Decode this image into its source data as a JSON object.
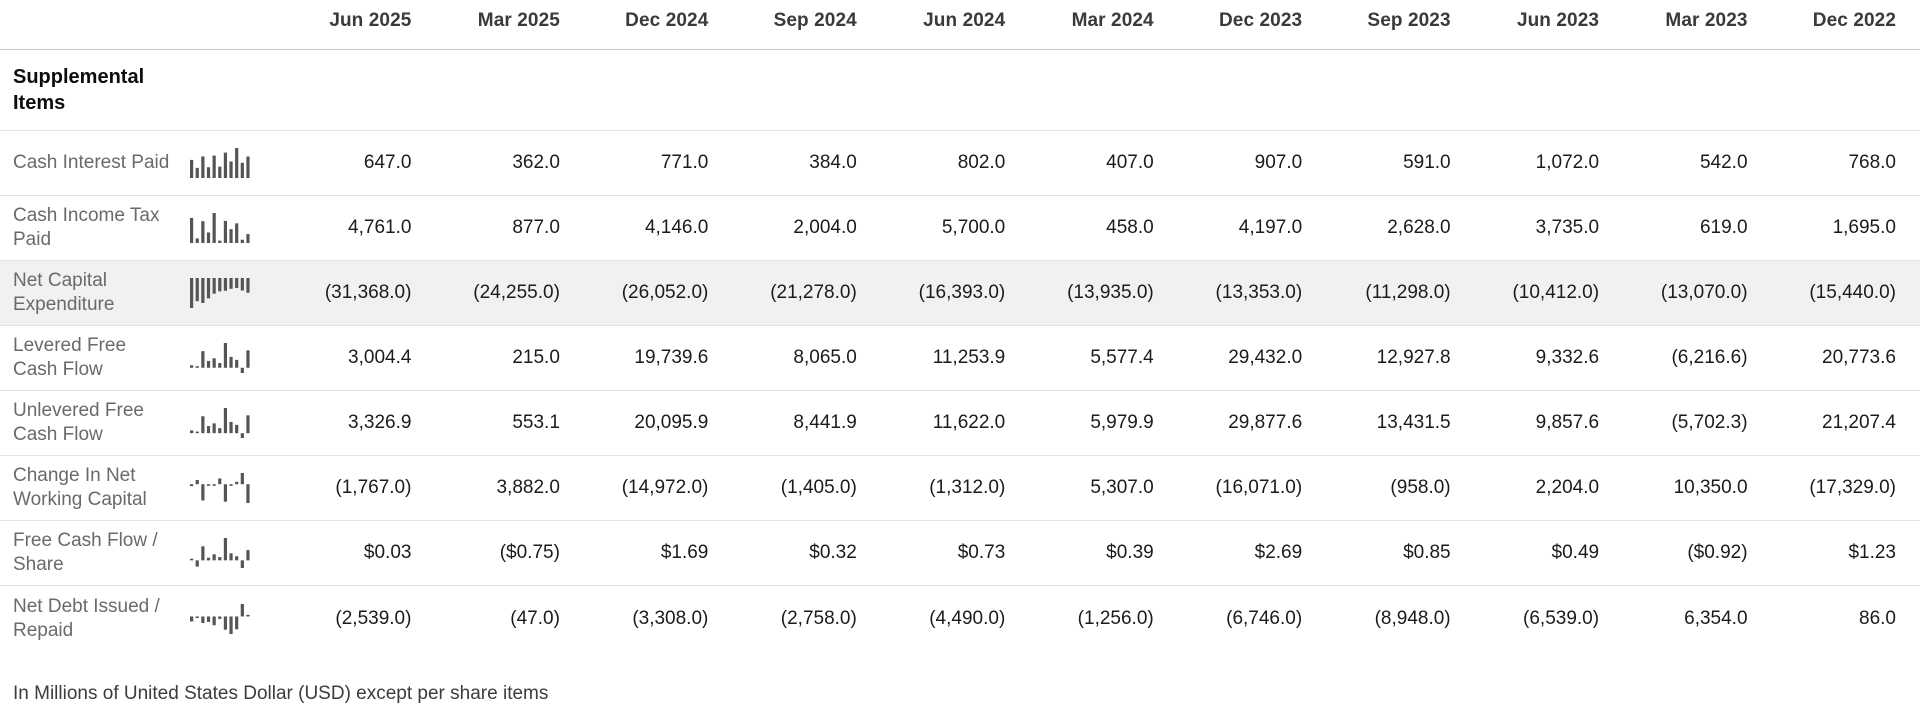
{
  "table": {
    "section_title": "Supplemental Items",
    "columns": [
      "Jun 2025",
      "Mar 2025",
      "Dec 2024",
      "Sep 2024",
      "Jun 2024",
      "Mar 2024",
      "Dec 2023",
      "Sep 2023",
      "Jun 2023",
      "Mar 2023",
      "Dec 2022"
    ],
    "rows": [
      {
        "label": "Cash Interest Paid",
        "highlighted": false,
        "values": [
          "647.0",
          "362.0",
          "771.0",
          "384.0",
          "802.0",
          "407.0",
          "907.0",
          "591.0",
          "1,072.0",
          "542.0",
          "768.0"
        ]
      },
      {
        "label": "Cash Income Tax Paid",
        "highlighted": false,
        "values": [
          "4,761.0",
          "877.0",
          "4,146.0",
          "2,004.0",
          "5,700.0",
          "458.0",
          "4,197.0",
          "2,628.0",
          "3,735.0",
          "619.0",
          "1,695.0"
        ]
      },
      {
        "label": "Net Capital Expenditure",
        "highlighted": true,
        "values": [
          "(31,368.0)",
          "(24,255.0)",
          "(26,052.0)",
          "(21,278.0)",
          "(16,393.0)",
          "(13,935.0)",
          "(13,353.0)",
          "(11,298.0)",
          "(10,412.0)",
          "(13,070.0)",
          "(15,440.0)"
        ]
      },
      {
        "label": "Levered Free Cash Flow",
        "highlighted": false,
        "values": [
          "3,004.4",
          "215.0",
          "19,739.6",
          "8,065.0",
          "11,253.9",
          "5,577.4",
          "29,432.0",
          "12,927.8",
          "9,332.6",
          "(6,216.6)",
          "20,773.6"
        ]
      },
      {
        "label": "Unlevered Free Cash Flow",
        "highlighted": false,
        "values": [
          "3,326.9",
          "553.1",
          "20,095.9",
          "8,441.9",
          "11,622.0",
          "5,979.9",
          "29,877.6",
          "13,431.5",
          "9,857.6",
          "(5,702.3)",
          "21,207.4"
        ]
      },
      {
        "label": "Change In Net Working Capital",
        "highlighted": false,
        "values": [
          "(1,767.0)",
          "3,882.0",
          "(14,972.0)",
          "(1,405.0)",
          "(1,312.0)",
          "5,307.0",
          "(16,071.0)",
          "(958.0)",
          "2,204.0",
          "10,350.0",
          "(17,329.0)"
        ]
      },
      {
        "label": "Free Cash Flow / Share",
        "highlighted": false,
        "values": [
          "$0.03",
          "($0.75)",
          "$1.69",
          "$0.32",
          "$0.73",
          "$0.39",
          "$2.69",
          "$0.85",
          "$0.49",
          "($0.92)",
          "$1.23"
        ]
      },
      {
        "label": "Net Debt Issued / Repaid",
        "highlighted": false,
        "values": [
          "(2,539.0)",
          "(47.0)",
          "(3,308.0)",
          "(2,758.0)",
          "(4,490.0)",
          "(1,256.0)",
          "(6,746.0)",
          "(8,948.0)",
          "(6,539.0)",
          "6,354.0",
          "86.0"
        ]
      }
    ],
    "footnote": "In Millions of United States Dollar (USD) except per share items"
  },
  "colors": {
    "row_highlight": "#f1f1f3",
    "sparkline_bar": "#555555",
    "header_text": "#3a3a3a",
    "label_text": "#6a6a6a",
    "value_text": "#1b1b1b",
    "divider": "#e3e3e3",
    "header_divider": "#c6c6c6"
  }
}
